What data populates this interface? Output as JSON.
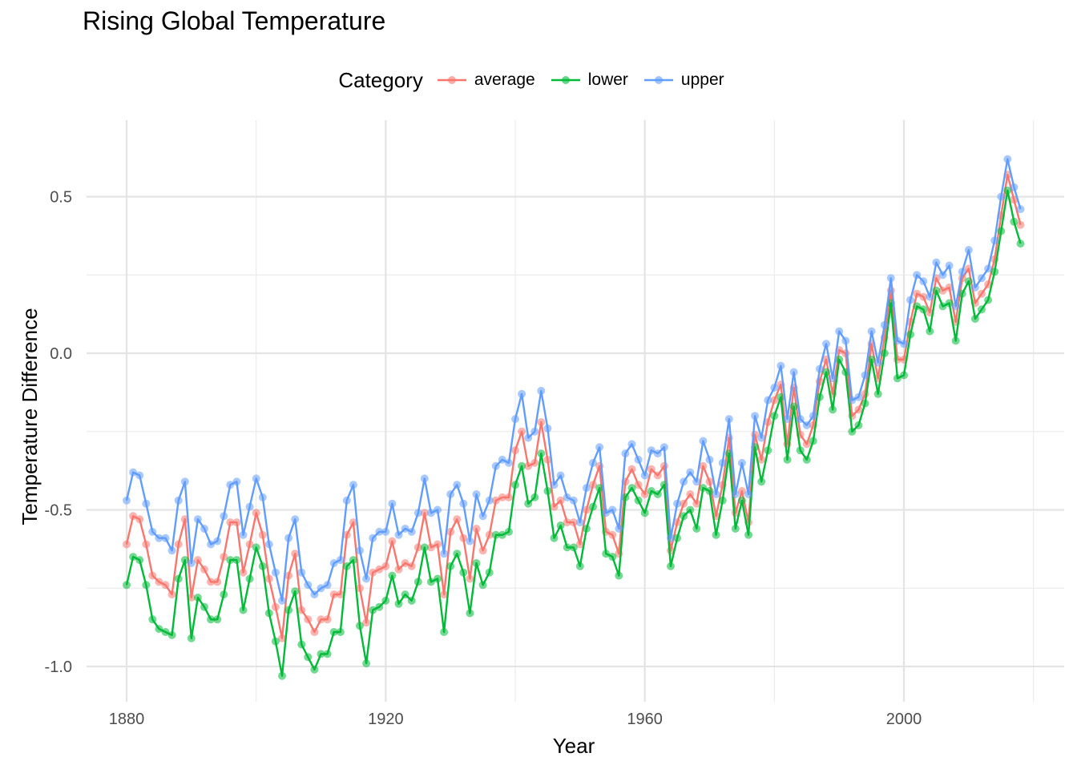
{
  "chart_data": {
    "type": "line",
    "title": "Rising Global Temperature",
    "xlabel": "Year",
    "ylabel": "Temperature Difference",
    "xlim": [
      1880,
      2018
    ],
    "ylim": [
      -1.08,
      0.68
    ],
    "x_ticks": [
      1880,
      1920,
      1960,
      2000
    ],
    "y_ticks": [
      -1.0,
      -0.5,
      0.0,
      0.5
    ],
    "y_tick_labels": [
      "-1.0",
      "-0.5",
      "0.0",
      "0.5"
    ],
    "grid": true,
    "legend": {
      "title": "Category",
      "position": "top"
    },
    "x": [
      1880,
      1881,
      1882,
      1883,
      1884,
      1885,
      1886,
      1887,
      1888,
      1889,
      1890,
      1891,
      1892,
      1893,
      1894,
      1895,
      1896,
      1897,
      1898,
      1899,
      1900,
      1901,
      1902,
      1903,
      1904,
      1905,
      1906,
      1907,
      1908,
      1909,
      1910,
      1911,
      1912,
      1913,
      1914,
      1915,
      1916,
      1917,
      1918,
      1919,
      1920,
      1921,
      1922,
      1923,
      1924,
      1925,
      1926,
      1927,
      1928,
      1929,
      1930,
      1931,
      1932,
      1933,
      1934,
      1935,
      1936,
      1937,
      1938,
      1939,
      1940,
      1941,
      1942,
      1943,
      1944,
      1945,
      1946,
      1947,
      1948,
      1949,
      1950,
      1951,
      1952,
      1953,
      1954,
      1955,
      1956,
      1957,
      1958,
      1959,
      1960,
      1961,
      1962,
      1963,
      1964,
      1965,
      1966,
      1967,
      1968,
      1969,
      1970,
      1971,
      1972,
      1973,
      1974,
      1975,
      1976,
      1977,
      1978,
      1979,
      1980,
      1981,
      1982,
      1983,
      1984,
      1985,
      1986,
      1987,
      1988,
      1989,
      1990,
      1991,
      1992,
      1993,
      1994,
      1995,
      1996,
      1997,
      1998,
      1999,
      2000,
      2001,
      2002,
      2003,
      2004,
      2005,
      2006,
      2007,
      2008,
      2009,
      2010,
      2011,
      2012,
      2013,
      2014,
      2015,
      2016,
      2017,
      2018
    ],
    "series": [
      {
        "name": "average",
        "color": "#F8766D",
        "values": [
          -0.61,
          -0.52,
          -0.53,
          -0.61,
          -0.71,
          -0.73,
          -0.74,
          -0.77,
          -0.61,
          -0.53,
          -0.78,
          -0.66,
          -0.69,
          -0.73,
          -0.73,
          -0.65,
          -0.54,
          -0.54,
          -0.7,
          -0.61,
          -0.51,
          -0.58,
          -0.72,
          -0.81,
          -0.91,
          -0.71,
          -0.64,
          -0.82,
          -0.85,
          -0.89,
          -0.85,
          -0.85,
          -0.77,
          -0.77,
          -0.58,
          -0.54,
          -0.75,
          -0.86,
          -0.7,
          -0.69,
          -0.68,
          -0.6,
          -0.69,
          -0.67,
          -0.68,
          -0.62,
          -0.51,
          -0.62,
          -0.61,
          -0.77,
          -0.57,
          -0.53,
          -0.59,
          -0.72,
          -0.56,
          -0.63,
          -0.58,
          -0.47,
          -0.46,
          -0.46,
          -0.31,
          -0.25,
          -0.36,
          -0.35,
          -0.22,
          -0.34,
          -0.49,
          -0.47,
          -0.54,
          -0.54,
          -0.61,
          -0.5,
          -0.42,
          -0.36,
          -0.57,
          -0.58,
          -0.64,
          -0.41,
          -0.37,
          -0.42,
          -0.45,
          -0.37,
          -0.39,
          -0.36,
          -0.63,
          -0.54,
          -0.48,
          -0.45,
          -0.48,
          -0.36,
          -0.41,
          -0.52,
          -0.42,
          -0.27,
          -0.51,
          -0.44,
          -0.54,
          -0.26,
          -0.34,
          -0.22,
          -0.15,
          -0.1,
          -0.29,
          -0.11,
          -0.26,
          -0.29,
          -0.23,
          -0.09,
          -0.02,
          -0.13,
          0.01,
          0.0,
          -0.2,
          -0.18,
          -0.13,
          0.03,
          -0.08,
          0.05,
          0.2,
          -0.02,
          -0.02,
          0.1,
          0.19,
          0.18,
          0.13,
          0.24,
          0.2,
          0.21,
          0.1,
          0.24,
          0.27,
          0.16,
          0.19,
          0.22,
          0.3,
          0.44,
          0.57,
          0.49,
          0.41
        ]
      },
      {
        "name": "lower",
        "color": "#00BA38",
        "values": [
          -0.74,
          -0.65,
          -0.66,
          -0.74,
          -0.85,
          -0.88,
          -0.89,
          -0.9,
          -0.72,
          -0.66,
          -0.91,
          -0.78,
          -0.81,
          -0.85,
          -0.85,
          -0.77,
          -0.66,
          -0.66,
          -0.82,
          -0.72,
          -0.62,
          -0.68,
          -0.83,
          -0.92,
          -1.03,
          -0.82,
          -0.76,
          -0.93,
          -0.97,
          -1.01,
          -0.96,
          -0.96,
          -0.89,
          -0.89,
          -0.68,
          -0.66,
          -0.87,
          -0.99,
          -0.82,
          -0.81,
          -0.79,
          -0.71,
          -0.8,
          -0.77,
          -0.79,
          -0.73,
          -0.62,
          -0.73,
          -0.72,
          -0.89,
          -0.68,
          -0.64,
          -0.7,
          -0.83,
          -0.67,
          -0.74,
          -0.7,
          -0.58,
          -0.58,
          -0.57,
          -0.42,
          -0.36,
          -0.48,
          -0.46,
          -0.32,
          -0.44,
          -0.59,
          -0.55,
          -0.62,
          -0.62,
          -0.68,
          -0.56,
          -0.49,
          -0.43,
          -0.64,
          -0.65,
          -0.71,
          -0.46,
          -0.43,
          -0.47,
          -0.51,
          -0.44,
          -0.45,
          -0.42,
          -0.68,
          -0.59,
          -0.52,
          -0.5,
          -0.56,
          -0.43,
          -0.44,
          -0.58,
          -0.47,
          -0.32,
          -0.56,
          -0.47,
          -0.58,
          -0.3,
          -0.41,
          -0.31,
          -0.2,
          -0.14,
          -0.34,
          -0.17,
          -0.31,
          -0.34,
          -0.28,
          -0.14,
          -0.06,
          -0.18,
          -0.02,
          -0.06,
          -0.25,
          -0.23,
          -0.16,
          -0.02,
          -0.13,
          0.0,
          0.16,
          -0.08,
          -0.07,
          0.06,
          0.15,
          0.14,
          0.07,
          0.2,
          0.15,
          0.16,
          0.04,
          0.19,
          0.23,
          0.11,
          0.14,
          0.17,
          0.26,
          0.39,
          0.52,
          0.42,
          0.35
        ]
      },
      {
        "name": "upper",
        "color": "#619CFF",
        "values": [
          -0.47,
          -0.38,
          -0.39,
          -0.48,
          -0.57,
          -0.59,
          -0.59,
          -0.63,
          -0.47,
          -0.41,
          -0.67,
          -0.53,
          -0.56,
          -0.61,
          -0.6,
          -0.52,
          -0.42,
          -0.41,
          -0.58,
          -0.49,
          -0.4,
          -0.46,
          -0.61,
          -0.7,
          -0.79,
          -0.59,
          -0.53,
          -0.7,
          -0.74,
          -0.77,
          -0.75,
          -0.74,
          -0.67,
          -0.66,
          -0.47,
          -0.42,
          -0.63,
          -0.72,
          -0.59,
          -0.57,
          -0.57,
          -0.48,
          -0.58,
          -0.56,
          -0.57,
          -0.51,
          -0.4,
          -0.51,
          -0.5,
          -0.64,
          -0.45,
          -0.42,
          -0.48,
          -0.6,
          -0.45,
          -0.52,
          -0.47,
          -0.36,
          -0.34,
          -0.35,
          -0.21,
          -0.13,
          -0.27,
          -0.25,
          -0.12,
          -0.24,
          -0.42,
          -0.39,
          -0.46,
          -0.47,
          -0.54,
          -0.43,
          -0.35,
          -0.3,
          -0.51,
          -0.5,
          -0.56,
          -0.32,
          -0.29,
          -0.34,
          -0.39,
          -0.31,
          -0.32,
          -0.3,
          -0.59,
          -0.48,
          -0.41,
          -0.38,
          -0.41,
          -0.28,
          -0.34,
          -0.45,
          -0.35,
          -0.21,
          -0.45,
          -0.35,
          -0.45,
          -0.2,
          -0.27,
          -0.15,
          -0.11,
          -0.04,
          -0.21,
          -0.06,
          -0.21,
          -0.23,
          -0.2,
          -0.05,
          0.03,
          -0.08,
          0.07,
          0.04,
          -0.15,
          -0.14,
          -0.07,
          0.07,
          -0.03,
          0.09,
          0.24,
          0.04,
          0.03,
          0.17,
          0.25,
          0.23,
          0.18,
          0.29,
          0.25,
          0.28,
          0.15,
          0.26,
          0.33,
          0.21,
          0.24,
          0.27,
          0.36,
          0.5,
          0.62,
          0.53,
          0.46
        ]
      }
    ]
  }
}
